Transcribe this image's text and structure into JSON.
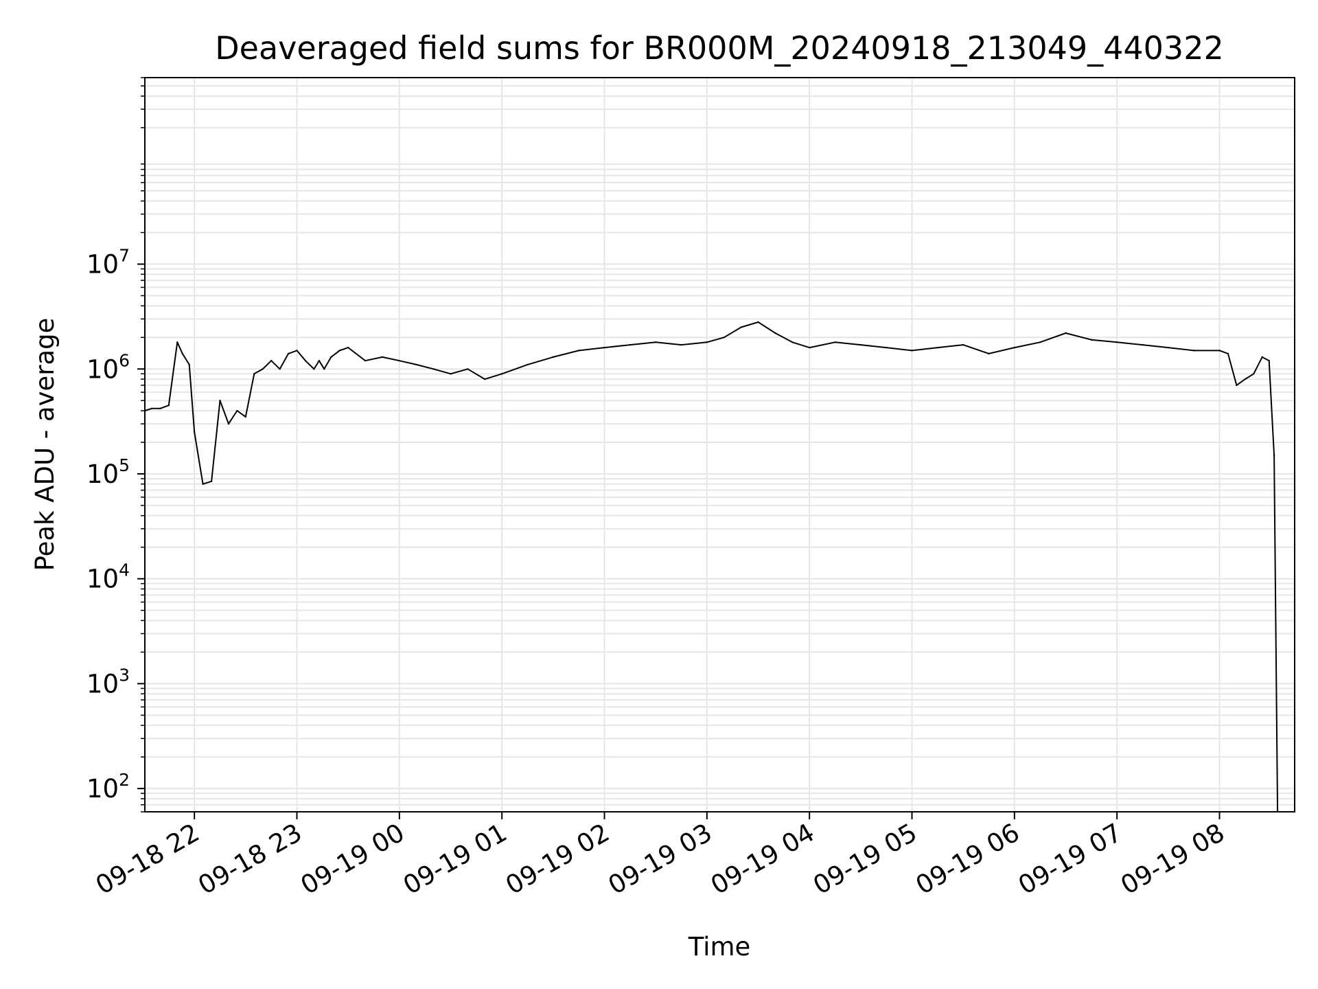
{
  "chart_data": {
    "type": "line",
    "title": "Deaveraged field sums for BR000M_20240918_213049_440322",
    "xlabel": "Time",
    "ylabel": "Peak ADU - average",
    "yscale": "log",
    "grid": true,
    "line_color": "#000000",
    "grid_color": "#e6e6e6",
    "xlim": [
      "2024-09-18T21:31",
      "2024-09-19T08:44"
    ],
    "ylim": [
      60,
      600000000
    ],
    "x_ticks": [
      {
        "value": "2024-09-18T22:00",
        "label": "09-18 22"
      },
      {
        "value": "2024-09-18T23:00",
        "label": "09-18 23"
      },
      {
        "value": "2024-09-19T00:00",
        "label": "09-19 00"
      },
      {
        "value": "2024-09-19T01:00",
        "label": "09-19 01"
      },
      {
        "value": "2024-09-19T02:00",
        "label": "09-19 02"
      },
      {
        "value": "2024-09-19T03:00",
        "label": "09-19 03"
      },
      {
        "value": "2024-09-19T04:00",
        "label": "09-19 04"
      },
      {
        "value": "2024-09-19T05:00",
        "label": "09-19 05"
      },
      {
        "value": "2024-09-19T06:00",
        "label": "09-19 06"
      },
      {
        "value": "2024-09-19T07:00",
        "label": "09-19 07"
      },
      {
        "value": "2024-09-19T08:00",
        "label": "09-19 08"
      }
    ],
    "y_ticks": [
      {
        "value": 100,
        "base": "10",
        "exp": "2"
      },
      {
        "value": 1000,
        "base": "10",
        "exp": "3"
      },
      {
        "value": 10000,
        "base": "10",
        "exp": "4"
      },
      {
        "value": 100000,
        "base": "10",
        "exp": "5"
      },
      {
        "value": 1000000,
        "base": "10",
        "exp": "6"
      },
      {
        "value": 10000000,
        "base": "10",
        "exp": "7"
      }
    ],
    "series": [
      {
        "x": [
          "2024-09-18T21:31",
          "2024-09-18T21:35",
          "2024-09-18T21:40",
          "2024-09-18T21:45",
          "2024-09-18T21:50",
          "2024-09-18T21:53",
          "2024-09-18T21:57",
          "2024-09-18T22:00",
          "2024-09-18T22:05",
          "2024-09-18T22:10",
          "2024-09-18T22:15",
          "2024-09-18T22:20",
          "2024-09-18T22:25",
          "2024-09-18T22:30",
          "2024-09-18T22:35",
          "2024-09-18T22:40",
          "2024-09-18T22:45",
          "2024-09-18T22:50",
          "2024-09-18T22:55",
          "2024-09-18T23:00",
          "2024-09-18T23:05",
          "2024-09-18T23:10",
          "2024-09-18T23:13",
          "2024-09-18T23:16",
          "2024-09-18T23:20",
          "2024-09-18T23:25",
          "2024-09-18T23:30",
          "2024-09-18T23:40",
          "2024-09-18T23:50",
          "2024-09-19T00:00",
          "2024-09-19T00:10",
          "2024-09-19T00:20",
          "2024-09-19T00:30",
          "2024-09-19T00:40",
          "2024-09-19T00:50",
          "2024-09-19T01:00",
          "2024-09-19T01:15",
          "2024-09-19T01:30",
          "2024-09-19T01:45",
          "2024-09-19T02:00",
          "2024-09-19T02:15",
          "2024-09-19T02:30",
          "2024-09-19T02:45",
          "2024-09-19T03:00",
          "2024-09-19T03:10",
          "2024-09-19T03:20",
          "2024-09-19T03:30",
          "2024-09-19T03:40",
          "2024-09-19T03:50",
          "2024-09-19T04:00",
          "2024-09-19T04:15",
          "2024-09-19T04:30",
          "2024-09-19T04:45",
          "2024-09-19T05:00",
          "2024-09-19T05:15",
          "2024-09-19T05:30",
          "2024-09-19T05:45",
          "2024-09-19T06:00",
          "2024-09-19T06:15",
          "2024-09-19T06:30",
          "2024-09-19T06:45",
          "2024-09-19T07:00",
          "2024-09-19T07:15",
          "2024-09-19T07:30",
          "2024-09-19T07:45",
          "2024-09-19T08:00",
          "2024-09-19T08:05",
          "2024-09-19T08:10",
          "2024-09-19T08:15",
          "2024-09-19T08:20",
          "2024-09-19T08:25",
          "2024-09-19T08:29",
          "2024-09-19T08:32",
          "2024-09-19T08:34"
        ],
        "y": [
          400000,
          420000,
          420000,
          450000,
          1800000,
          1400000,
          1100000,
          250000,
          80000,
          85000,
          500000,
          300000,
          400000,
          350000,
          900000,
          1000000,
          1200000,
          1000000,
          1400000,
          1500000,
          1200000,
          1000000,
          1200000,
          1000000,
          1300000,
          1500000,
          1600000,
          1200000,
          1300000,
          1200000,
          1100000,
          1000000,
          900000,
          1000000,
          800000,
          900000,
          1100000,
          1300000,
          1500000,
          1600000,
          1700000,
          1800000,
          1700000,
          1800000,
          2000000,
          2500000,
          2800000,
          2200000,
          1800000,
          1600000,
          1800000,
          1700000,
          1600000,
          1500000,
          1600000,
          1700000,
          1400000,
          1600000,
          1800000,
          2200000,
          1900000,
          1800000,
          1700000,
          1600000,
          1500000,
          1500000,
          1400000,
          700000,
          800000,
          900000,
          1300000,
          1200000,
          150000,
          60
        ]
      }
    ]
  }
}
